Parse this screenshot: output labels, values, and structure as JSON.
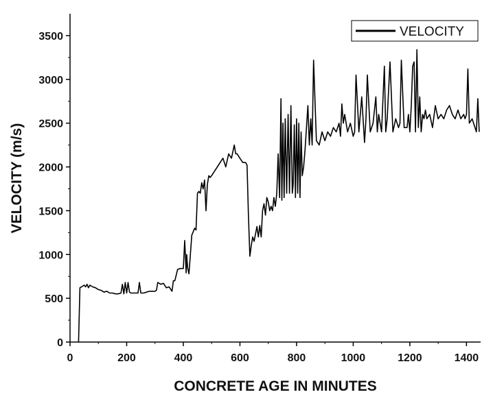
{
  "chart_data": {
    "type": "line",
    "xlabel": "CONCRETE AGE IN MINUTES",
    "ylabel": "VELOCITY (m/s)",
    "xlim": [
      0,
      1450
    ],
    "ylim": [
      0,
      3750
    ],
    "xticks": [
      0,
      200,
      400,
      600,
      800,
      1000,
      1200,
      1400
    ],
    "yticks": [
      0,
      500,
      1000,
      1500,
      2000,
      2500,
      3000,
      3500
    ],
    "legend": "top-right",
    "grid": false,
    "line_color": "#000000",
    "series": [
      {
        "name": "VELOCITY",
        "x": [
          30,
          35,
          45,
          50,
          55,
          60,
          65,
          70,
          80,
          90,
          100,
          110,
          120,
          130,
          140,
          150,
          160,
          170,
          180,
          185,
          190,
          195,
          200,
          205,
          210,
          215,
          220,
          230,
          240,
          245,
          250,
          260,
          270,
          280,
          290,
          300,
          305,
          310,
          320,
          330,
          340,
          350,
          360,
          365,
          370,
          380,
          390,
          395,
          400,
          405,
          410,
          412,
          415,
          420,
          430,
          440,
          445,
          450,
          455,
          460,
          465,
          470,
          475,
          480,
          485,
          490,
          495,
          500,
          510,
          520,
          530,
          540,
          550,
          560,
          570,
          580,
          585,
          590,
          600,
          610,
          620,
          625,
          630,
          635,
          640,
          645,
          650,
          660,
          665,
          670,
          675,
          680,
          685,
          690,
          695,
          700,
          705,
          710,
          715,
          720,
          725,
          730,
          735,
          740,
          745,
          748,
          752,
          756,
          760,
          765,
          770,
          775,
          780,
          785,
          788,
          792,
          796,
          800,
          804,
          808,
          812,
          816,
          820,
          825,
          830,
          840,
          845,
          850,
          855,
          860,
          870,
          880,
          890,
          900,
          910,
          920,
          930,
          940,
          950,
          955,
          960,
          965,
          970,
          980,
          990,
          1000,
          1005,
          1010,
          1020,
          1030,
          1040,
          1045,
          1050,
          1060,
          1065,
          1070,
          1080,
          1085,
          1090,
          1100,
          1110,
          1115,
          1120,
          1130,
          1140,
          1150,
          1160,
          1165,
          1170,
          1180,
          1190,
          1195,
          1200,
          1205,
          1210,
          1215,
          1220,
          1225,
          1230,
          1235,
          1240,
          1245,
          1250,
          1255,
          1260,
          1270,
          1280,
          1290,
          1300,
          1310,
          1320,
          1330,
          1340,
          1350,
          1360,
          1370,
          1380,
          1390,
          1395,
          1400,
          1405,
          1410,
          1420,
          1430,
          1435,
          1440,
          1445
        ],
        "values": [
          0,
          620,
          640,
          650,
          630,
          660,
          620,
          650,
          630,
          620,
          600,
          590,
          570,
          580,
          560,
          560,
          550,
          550,
          560,
          660,
          550,
          680,
          560,
          680,
          570,
          560,
          560,
          560,
          560,
          680,
          560,
          560,
          570,
          580,
          580,
          580,
          590,
          680,
          660,
          670,
          620,
          630,
          580,
          700,
          700,
          830,
          840,
          840,
          840,
          1160,
          790,
          1000,
          850,
          780,
          1220,
          1300,
          1280,
          1700,
          1720,
          1700,
          1820,
          1750,
          1850,
          1500,
          1800,
          1900,
          1880,
          1900,
          1950,
          2000,
          2050,
          2100,
          2000,
          2150,
          2100,
          2250,
          2150,
          2150,
          2100,
          2050,
          2050,
          2020,
          1450,
          980,
          1100,
          1200,
          1150,
          1320,
          1200,
          1330,
          1200,
          1500,
          1580,
          1450,
          1650,
          1600,
          1500,
          1550,
          1500,
          1650,
          1550,
          1700,
          2150,
          1650,
          2780,
          1620,
          2500,
          1650,
          2550,
          1700,
          2600,
          1700,
          2700,
          1700,
          1800,
          2480,
          1650,
          2550,
          1700,
          2500,
          1650,
          2400,
          1900,
          2000,
          2200,
          2700,
          2250,
          2550,
          2250,
          3220,
          2300,
          2250,
          2400,
          2300,
          2400,
          2350,
          2450,
          2400,
          2500,
          2350,
          2720,
          2500,
          2600,
          2400,
          2500,
          2350,
          2400,
          3050,
          2400,
          2800,
          2280,
          2550,
          3050,
          2400,
          2450,
          2500,
          2800,
          2400,
          2600,
          2400,
          3150,
          2400,
          2550,
          3200,
          2400,
          2550,
          2450,
          2500,
          3220,
          2450,
          2450,
          2600,
          2400,
          2700,
          3150,
          3200,
          2400,
          3340,
          2450,
          2800,
          2400,
          2600,
          2550,
          2650,
          2550,
          2600,
          2450,
          2700,
          2550,
          2600,
          2550,
          2650,
          2700,
          2600,
          2550,
          2650,
          2550,
          2600,
          2550,
          2600,
          3120,
          2500,
          2550,
          2450,
          2400,
          2780,
          2400
        ]
      }
    ]
  }
}
